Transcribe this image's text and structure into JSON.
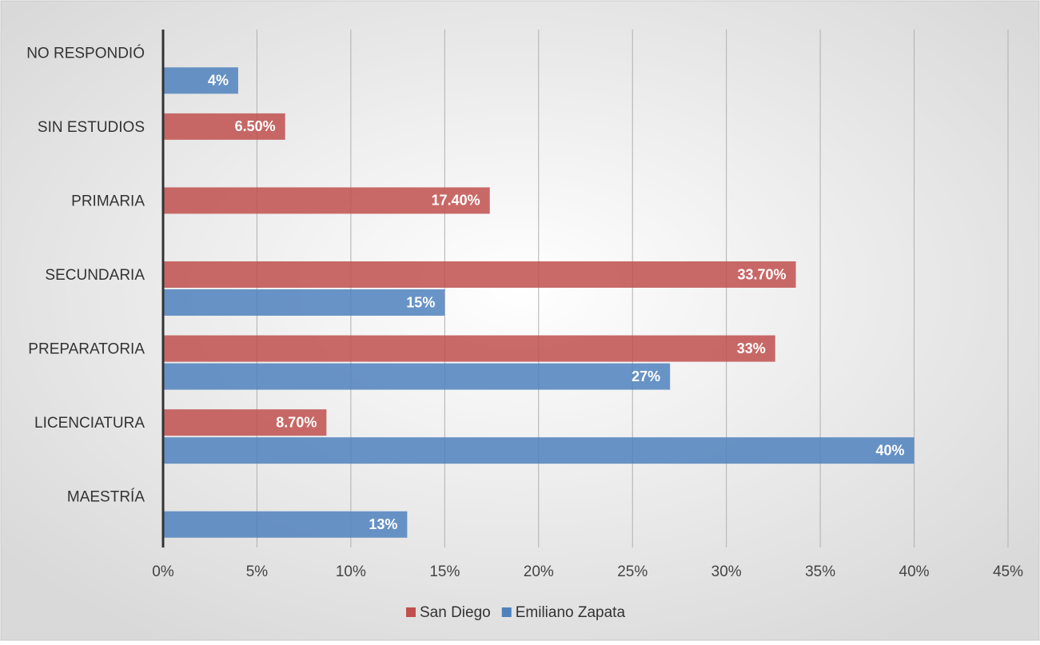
{
  "chart_data": {
    "type": "hbar",
    "categories": [
      "NO RESPONDIÓ",
      "SIN ESTUDIOS",
      "PRIMARIA",
      "SECUNDARIA",
      "PREPARATORIA",
      "LICENCIATURA",
      "MAESTRÍA"
    ],
    "series": [
      {
        "name": "San Diego",
        "color": "#c0504d",
        "values": [
          null,
          6.5,
          17.4,
          33.7,
          32.6,
          8.7,
          null
        ],
        "value_labels": [
          null,
          "6.50%",
          "17.40%",
          "33.70%",
          "33%",
          "8.70%",
          null
        ]
      },
      {
        "name": "Emiliano Zapata",
        "color": "#4f81bd",
        "values": [
          4,
          null,
          null,
          15,
          27,
          40,
          13
        ],
        "value_labels": [
          "4%",
          null,
          null,
          "15%",
          "27%",
          "40%",
          "13%"
        ]
      }
    ],
    "xlim": [
      0,
      45
    ],
    "xticks": [
      {
        "value": 0,
        "label": "0%"
      },
      {
        "value": 5,
        "label": "5%"
      },
      {
        "value": 10,
        "label": "10%"
      },
      {
        "value": 15,
        "label": "15%"
      },
      {
        "value": 20,
        "label": "20%"
      },
      {
        "value": 25,
        "label": "25%"
      },
      {
        "value": 30,
        "label": "30%"
      },
      {
        "value": 35,
        "label": "35%"
      },
      {
        "value": 40,
        "label": "40%"
      },
      {
        "value": 45,
        "label": "45%"
      }
    ],
    "grid": true,
    "legend": "bottom"
  }
}
